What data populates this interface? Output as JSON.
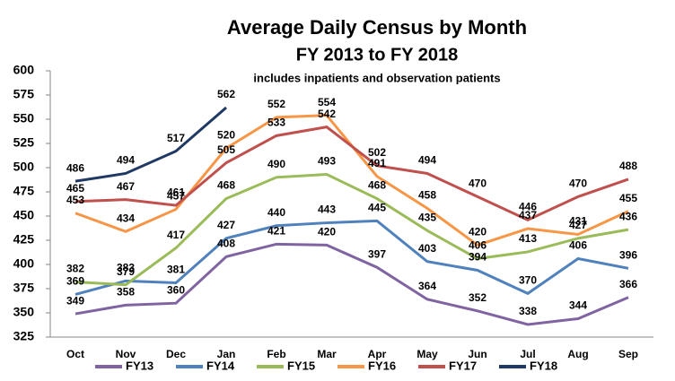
{
  "chart_data": {
    "type": "line",
    "title": "Average Daily Census by Month",
    "subtitle": "FY 2013 to FY 2018",
    "annotation": "includes inpatients and observation patients",
    "categories": [
      "Oct",
      "Nov",
      "Dec",
      "Jan",
      "Feb",
      "Mar",
      "Apr",
      "May",
      "Jun",
      "Jul",
      "Aug",
      "Sep"
    ],
    "series": [
      {
        "name": "FY13",
        "color": "#8064a2",
        "values": [
          349,
          358,
          360,
          408,
          421,
          420,
          397,
          364,
          352,
          338,
          344,
          366
        ]
      },
      {
        "name": "FY14",
        "color": "#4f81bd",
        "values": [
          369,
          383,
          381,
          427,
          440,
          443,
          445,
          403,
          394,
          370,
          406,
          396
        ]
      },
      {
        "name": "FY15",
        "color": "#9bbb59",
        "values": [
          382,
          379,
          417,
          468,
          490,
          493,
          468,
          435,
          406,
          413,
          427,
          436
        ]
      },
      {
        "name": "FY16",
        "color": "#f79646",
        "values": [
          453,
          434,
          457,
          520,
          552,
          554,
          491,
          458,
          420,
          437,
          431,
          455
        ]
      },
      {
        "name": "FY17",
        "color": "#c0504d",
        "values": [
          465,
          467,
          461,
          505,
          533,
          542,
          502,
          494,
          470,
          446,
          470,
          488
        ]
      },
      {
        "name": "FY18",
        "color": "#1f3864",
        "values": [
          486,
          494,
          517,
          562,
          null,
          null,
          null,
          null,
          null,
          null,
          null,
          null
        ]
      }
    ],
    "ylim": [
      325,
      600
    ],
    "yticks": [
      325,
      350,
      375,
      400,
      425,
      450,
      475,
      500,
      525,
      550,
      575,
      600
    ],
    "grid": false,
    "legend": "bottom"
  }
}
